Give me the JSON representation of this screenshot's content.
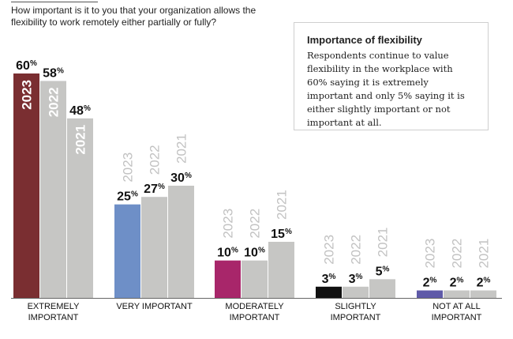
{
  "question": "How important is it to you that your organization allows the flexibility to work remotely either partially or fully?",
  "note": {
    "title": "Importance of flexibility",
    "body": "Respondents continue to value flexibility in the workplace with 60% saying it is extremely important and only 5% saying it is either slightly important or not important at all."
  },
  "chart_data": {
    "type": "bar",
    "categories": [
      [
        "EXTREMELY",
        "IMPORTANT"
      ],
      [
        "VERY IMPORTANT"
      ],
      [
        "MODERATELY",
        "IMPORTANT"
      ],
      [
        "SLIGHTLY",
        "IMPORTANT"
      ],
      [
        "NOT AT ALL",
        "IMPORTANT"
      ]
    ],
    "series": [
      {
        "name": "2023",
        "values": [
          60,
          25,
          10,
          3,
          2
        ]
      },
      {
        "name": "2022",
        "values": [
          58,
          27,
          10,
          3,
          2
        ]
      },
      {
        "name": "2021",
        "values": [
          48,
          30,
          15,
          5,
          2
        ]
      }
    ],
    "value_suffix": "%",
    "highlight_colors": [
      "#7a2e31",
      "#6e8fc7",
      "#a8266a",
      "#111111",
      "#5f5aa8"
    ],
    "other_color": "#c6c6c4",
    "ylim": [
      0,
      60
    ]
  }
}
